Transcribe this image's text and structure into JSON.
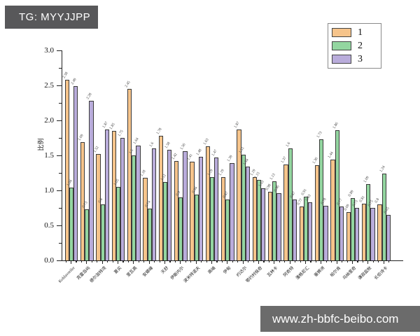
{
  "header": {
    "tag_label": "TG: MYYJJPP"
  },
  "footer": {
    "website": "www.zh-bbfc-beibo.com"
  },
  "chart_data": {
    "type": "bar",
    "title": "",
    "xlabel": "",
    "ylabel": "比例",
    "ylim": [
      0.0,
      3.0
    ],
    "grid": false,
    "background": "#ffffff",
    "bar_border_color": "#3a3a3a",
    "y_major_ticks": [
      3.0,
      2.5,
      2.0,
      1.5,
      1.0,
      0.5,
      0.0
    ],
    "y_major_tick_labels": [
      "3.0",
      "2.5",
      "2.0",
      "1.5",
      "1.0",
      "0.5",
      "0.0"
    ],
    "y_minor_ticks": [
      2.75,
      2.25,
      1.75,
      1.25,
      0.75,
      0.25
    ],
    "legend": {
      "position": "top-right",
      "entries": [
        {
          "label": "1",
          "color": "#f6c48b"
        },
        {
          "label": "2",
          "color": "#93d6a0"
        },
        {
          "label": "3",
          "color": "#b9acdb"
        }
      ]
    },
    "categories": [
      "Kohlavreiler",
      "克雷岛屿",
      "德尔滋特湾",
      "夏买",
      "里瓦高",
      "安娜峰",
      "天舒",
      "伊斯内尔",
      "波米特诺夫",
      "高岫",
      "伊甸",
      "约达尔",
      "鄂约村极奇",
      "瓦林卡",
      "阿奇特",
      "潘格尼汇",
      "豪狮洲",
      "帕尔肯",
      "乌纳里奇",
      "谦寂盐帐",
      "长伯诗卡"
    ],
    "series": [
      {
        "name": "1",
        "color": "#f6c48b",
        "values": [
          2.58,
          1.69,
          1.52,
          1.85,
          2.45,
          1.18,
          1.78,
          1.42,
          1.41,
          1.63,
          1.19,
          1.87,
          1.19,
          0.98,
          1.37,
          0.77,
          1.36,
          1.44,
          0.69,
          0.81,
          0.8
        ]
      },
      {
        "name": "2",
        "color": "#93d6a0",
        "values": [
          1.04,
          0.73,
          0.8,
          1.05,
          1.5,
          0.74,
          1.12,
          0.9,
          0.94,
          1.19,
          0.87,
          1.51,
          1.15,
          1.13,
          1.6,
          0.91,
          1.73,
          1.86,
          0.89,
          1.09,
          1.24
        ]
      },
      {
        "name": "3",
        "color": "#b9acdb",
        "values": [
          2.49,
          2.28,
          1.87,
          1.75,
          1.64,
          1.6,
          1.58,
          1.56,
          1.48,
          1.47,
          1.39,
          1.34,
          1.03,
          0.96,
          0.87,
          0.83,
          0.78,
          0.77,
          0.75,
          0.75,
          0.65
        ]
      }
    ]
  }
}
